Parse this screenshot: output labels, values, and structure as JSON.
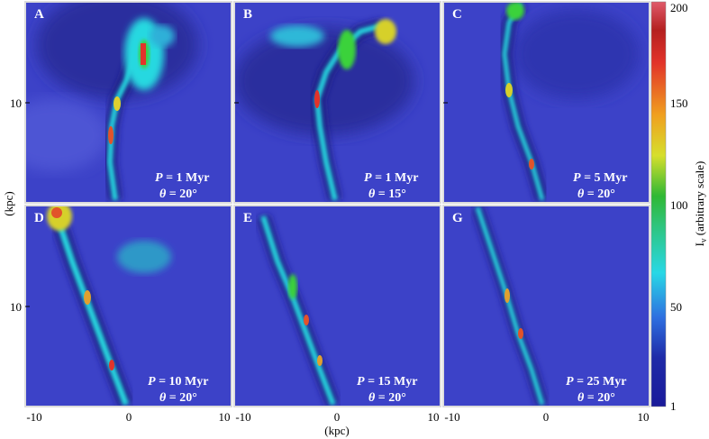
{
  "figure": {
    "y_axis_label": "(kpc)",
    "x_axis_label": "(kpc)",
    "y_ticks": [
      "10",
      "10"
    ],
    "x_ticks": [
      "-10",
      "0",
      "10",
      "-10",
      "0",
      "10",
      "-10",
      "0",
      "10"
    ],
    "colorbar": {
      "label": "Iν (arbitrary scale)",
      "label_main": "I",
      "label_sub": "ν",
      "label_rest": " (arbitrary scale)",
      "ticks": [
        "200",
        "150",
        "100",
        "50",
        "1"
      ]
    },
    "panels": [
      {
        "letter": "A",
        "P": "1 Myr",
        "theta": "20°"
      },
      {
        "letter": "B",
        "P": "1 Myr",
        "theta": "15°"
      },
      {
        "letter": "C",
        "P": "5 Myr",
        "theta": "20°"
      },
      {
        "letter": "D",
        "P": "10 Myr",
        "theta": "20°"
      },
      {
        "letter": "E",
        "P": "15 Myr",
        "theta": "20°"
      },
      {
        "letter": "G",
        "P": "25 Myr",
        "theta": "20°"
      }
    ],
    "p_symbol": "P",
    "theta_symbol": "θ",
    "eq": " = ",
    "colors": {
      "background_field": "#3a3fc4",
      "jet_cyan": "#2ee3e0",
      "jet_green": "#3ad24a",
      "jet_yellow": "#e8e33a",
      "jet_red": "#e2332a"
    }
  }
}
